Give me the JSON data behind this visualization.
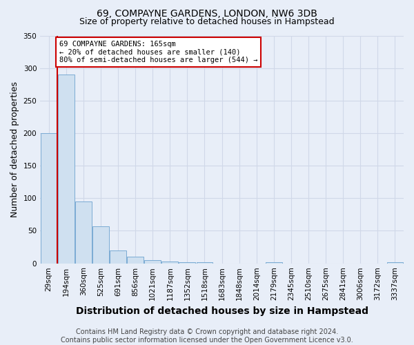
{
  "title": "69, COMPAYNE GARDENS, LONDON, NW6 3DB",
  "subtitle": "Size of property relative to detached houses in Hampstead",
  "xlabel": "Distribution of detached houses by size in Hampstead",
  "ylabel": "Number of detached properties",
  "categories": [
    "29sqm",
    "194sqm",
    "360sqm",
    "525sqm",
    "691sqm",
    "856sqm",
    "1021sqm",
    "1187sqm",
    "1352sqm",
    "1518sqm",
    "1683sqm",
    "1848sqm",
    "2014sqm",
    "2179sqm",
    "2345sqm",
    "2510sqm",
    "2675sqm",
    "2841sqm",
    "3006sqm",
    "3172sqm",
    "3337sqm"
  ],
  "values": [
    200,
    290,
    95,
    57,
    20,
    10,
    5,
    3,
    2,
    2,
    0,
    0,
    0,
    2,
    0,
    0,
    0,
    0,
    0,
    0,
    2
  ],
  "bar_color": "#cfe0f0",
  "bar_edge_color": "#7aabd4",
  "ylim": [
    0,
    350
  ],
  "yticks": [
    0,
    50,
    100,
    150,
    200,
    250,
    300,
    350
  ],
  "red_line_x": 0.5,
  "red_line_color": "#cc0000",
  "property_label": "69 COMPAYNE GARDENS: 165sqm",
  "annotation_line1": "69 COMPAYNE GARDENS: 165sqm",
  "annotation_line2": "← 20% of detached houses are smaller (140)",
  "annotation_line3": "80% of semi-detached houses are larger (544) →",
  "annotation_box_color": "#ffffff",
  "annotation_box_edge": "#cc0000",
  "footer": "Contains HM Land Registry data © Crown copyright and database right 2024.\nContains public sector information licensed under the Open Government Licence v3.0.",
  "background_color": "#e8eef8",
  "grid_color": "#d0d8e8",
  "title_fontsize": 10,
  "subtitle_fontsize": 9,
  "axis_label_fontsize": 9,
  "tick_fontsize": 7.5,
  "footer_fontsize": 7,
  "fig_width": 6.0,
  "fig_height": 5.0
}
